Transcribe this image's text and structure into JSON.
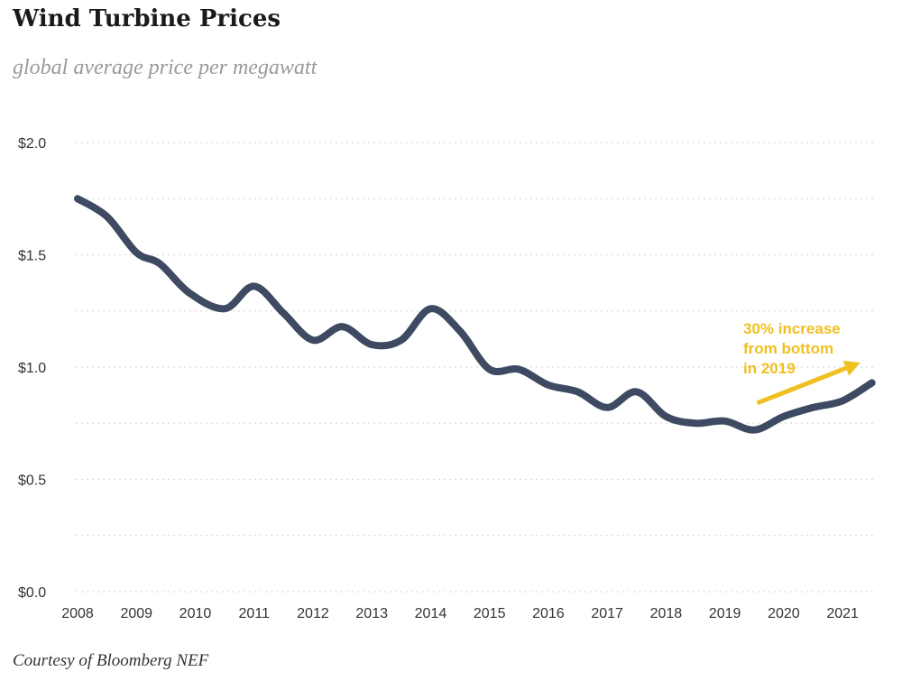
{
  "title": "Wind Turbine Prices",
  "subtitle": "global average price per megawatt",
  "footer": "Courtesy of Bloomberg NEF",
  "colors": {
    "line": "#3d4a61",
    "accent": "#f0c020",
    "grid": "#dcdcdc",
    "text": "#333333"
  },
  "chart_data": {
    "type": "line",
    "title": "Wind Turbine Prices",
    "subtitle": "global average price per megawatt",
    "xlabel": "",
    "ylabel": "",
    "xlim": [
      2008,
      2021.55
    ],
    "ylim": [
      0,
      2.0
    ],
    "x_ticks": [
      2008,
      2009,
      2010,
      2011,
      2012,
      2013,
      2014,
      2015,
      2016,
      2017,
      2018,
      2019,
      2020,
      2021
    ],
    "x_tick_labels": [
      "2008",
      "2009",
      "2010",
      "2011",
      "2012",
      "2013",
      "2014",
      "2015",
      "2016",
      "2017",
      "2018",
      "2019",
      "2020",
      "2021"
    ],
    "y_ticks": [
      0,
      0.5,
      1.0,
      1.5,
      2.0
    ],
    "y_tick_labels": [
      "$0.0",
      "$0.5",
      "$1.0",
      "$1.5",
      "$2.0"
    ],
    "grid": true,
    "series": [
      {
        "x": [
          2008.0,
          2008.5,
          2009.0,
          2009.4,
          2009.9,
          2010.5,
          2011.0,
          2011.5,
          2012.0,
          2012.5,
          2013.0,
          2013.5,
          2014.0,
          2014.5,
          2015.0,
          2015.5,
          2016.0,
          2016.5,
          2017.0,
          2017.5,
          2018.0,
          2018.5,
          2019.0,
          2019.5,
          2020.0,
          2020.5,
          2021.0,
          2021.5
        ],
        "y": [
          1.75,
          1.67,
          1.51,
          1.46,
          1.33,
          1.26,
          1.36,
          1.24,
          1.12,
          1.18,
          1.1,
          1.12,
          1.26,
          1.16,
          0.99,
          0.99,
          0.92,
          0.89,
          0.82,
          0.89,
          0.78,
          0.75,
          0.76,
          0.72,
          0.78,
          0.82,
          0.85,
          0.93
        ]
      }
    ],
    "annotations": [
      {
        "text_lines": [
          "30% increase",
          "from bottom",
          "in 2019"
        ],
        "color": "#f0c020",
        "arrow_from": [
          2019.55,
          0.84
        ],
        "arrow_to": [
          2021.3,
          1.02
        ]
      }
    ]
  }
}
